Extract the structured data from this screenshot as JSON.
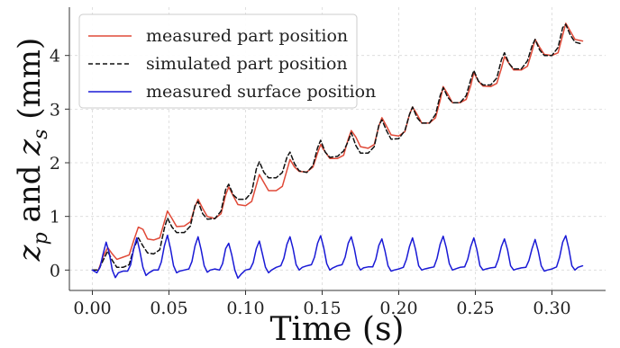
{
  "chart_data": {
    "type": "line",
    "xlabel": "Time (s)",
    "ylabel": "z_p and z_s (mm)",
    "ylabel_parts": {
      "z1": "z",
      "sub1": "p",
      "mid": " and ",
      "z2": "z",
      "sub2": "s",
      "unit": " (mm)"
    },
    "xlim": [
      -0.015,
      0.335
    ],
    "ylim": [
      -0.38,
      4.9
    ],
    "xticks": [
      0.0,
      0.05,
      0.1,
      0.15,
      0.2,
      0.25,
      0.3
    ],
    "xtick_labels": [
      "0.00",
      "0.05",
      "0.10",
      "0.15",
      "0.20",
      "0.25",
      "0.30"
    ],
    "yticks": [
      0,
      1,
      2,
      3,
      4
    ],
    "ytick_labels": [
      "0",
      "1",
      "2",
      "3",
      "4"
    ],
    "grid": true,
    "legend_position": "top-left",
    "series": [
      {
        "name": "measured part position",
        "color": "#e04a38",
        "style": "solid",
        "x": [
          0.0,
          0.004,
          0.007,
          0.01,
          0.013,
          0.016,
          0.02,
          0.024,
          0.027,
          0.03,
          0.033,
          0.036,
          0.04,
          0.044,
          0.047,
          0.049,
          0.052,
          0.055,
          0.06,
          0.064,
          0.067,
          0.069,
          0.072,
          0.075,
          0.08,
          0.084,
          0.087,
          0.089,
          0.092,
          0.095,
          0.1,
          0.104,
          0.107,
          0.109,
          0.112,
          0.115,
          0.12,
          0.124,
          0.127,
          0.129,
          0.132,
          0.135,
          0.14,
          0.144,
          0.147,
          0.149,
          0.152,
          0.155,
          0.16,
          0.164,
          0.167,
          0.169,
          0.172,
          0.175,
          0.18,
          0.184,
          0.187,
          0.189,
          0.192,
          0.195,
          0.2,
          0.204,
          0.207,
          0.209,
          0.212,
          0.215,
          0.22,
          0.224,
          0.227,
          0.229,
          0.232,
          0.235,
          0.24,
          0.244,
          0.247,
          0.249,
          0.252,
          0.255,
          0.26,
          0.264,
          0.267,
          0.269,
          0.272,
          0.275,
          0.28,
          0.284,
          0.287,
          0.289,
          0.292,
          0.295,
          0.3,
          0.304,
          0.307,
          0.309,
          0.312,
          0.315,
          0.32
        ],
        "y": [
          0.0,
          0.0,
          0.25,
          0.42,
          0.3,
          0.2,
          0.24,
          0.28,
          0.55,
          0.8,
          0.76,
          0.58,
          0.56,
          0.6,
          0.9,
          1.1,
          0.96,
          0.81,
          0.82,
          0.9,
          1.18,
          1.32,
          1.15,
          1.0,
          0.96,
          1.05,
          1.4,
          1.55,
          1.38,
          1.22,
          1.2,
          1.28,
          1.58,
          1.78,
          1.63,
          1.48,
          1.48,
          1.56,
          1.86,
          2.06,
          1.92,
          1.84,
          1.83,
          1.92,
          2.18,
          2.34,
          2.2,
          2.08,
          2.08,
          2.14,
          2.44,
          2.6,
          2.48,
          2.3,
          2.27,
          2.34,
          2.68,
          2.84,
          2.68,
          2.52,
          2.5,
          2.58,
          2.9,
          3.04,
          2.9,
          2.74,
          2.74,
          2.84,
          3.16,
          3.42,
          3.28,
          3.12,
          3.12,
          3.18,
          3.44,
          3.68,
          3.52,
          3.43,
          3.42,
          3.48,
          3.76,
          3.98,
          3.85,
          3.73,
          3.73,
          3.8,
          4.08,
          4.3,
          4.15,
          4.02,
          4.0,
          4.05,
          4.38,
          4.6,
          4.45,
          4.3,
          4.27
        ]
      },
      {
        "name": "simulated part position",
        "color": "#111111",
        "style": "dashed",
        "x": [
          0.0,
          0.004,
          0.007,
          0.01,
          0.013,
          0.016,
          0.02,
          0.024,
          0.027,
          0.03,
          0.033,
          0.036,
          0.04,
          0.044,
          0.047,
          0.049,
          0.052,
          0.055,
          0.06,
          0.064,
          0.067,
          0.069,
          0.072,
          0.075,
          0.08,
          0.084,
          0.087,
          0.089,
          0.092,
          0.095,
          0.1,
          0.104,
          0.107,
          0.109,
          0.112,
          0.115,
          0.12,
          0.124,
          0.127,
          0.129,
          0.132,
          0.135,
          0.14,
          0.144,
          0.147,
          0.149,
          0.152,
          0.155,
          0.16,
          0.164,
          0.167,
          0.169,
          0.172,
          0.175,
          0.18,
          0.184,
          0.187,
          0.189,
          0.192,
          0.195,
          0.2,
          0.204,
          0.207,
          0.209,
          0.212,
          0.215,
          0.22,
          0.224,
          0.227,
          0.229,
          0.232,
          0.235,
          0.24,
          0.244,
          0.247,
          0.249,
          0.252,
          0.255,
          0.26,
          0.264,
          0.267,
          0.269,
          0.272,
          0.275,
          0.28,
          0.284,
          0.287,
          0.289,
          0.292,
          0.295,
          0.3,
          0.304,
          0.307,
          0.309,
          0.312,
          0.315,
          0.32
        ],
        "y": [
          0.0,
          0.0,
          0.18,
          0.35,
          0.18,
          0.05,
          0.05,
          0.1,
          0.4,
          0.6,
          0.45,
          0.32,
          0.3,
          0.38,
          0.78,
          0.97,
          0.8,
          0.7,
          0.7,
          0.82,
          1.2,
          1.28,
          1.05,
          0.95,
          0.96,
          1.1,
          1.5,
          1.6,
          1.4,
          1.32,
          1.32,
          1.45,
          1.88,
          2.02,
          1.82,
          1.72,
          1.72,
          1.82,
          2.1,
          2.2,
          1.98,
          1.85,
          1.82,
          1.95,
          2.28,
          2.42,
          2.2,
          2.1,
          2.12,
          2.22,
          2.4,
          2.56,
          2.32,
          2.18,
          2.18,
          2.3,
          2.7,
          2.8,
          2.6,
          2.44,
          2.45,
          2.6,
          2.9,
          3.04,
          2.84,
          2.74,
          2.74,
          2.9,
          3.25,
          3.4,
          3.22,
          3.12,
          3.12,
          3.25,
          3.55,
          3.72,
          3.52,
          3.45,
          3.45,
          3.58,
          3.92,
          4.05,
          3.85,
          3.75,
          3.75,
          3.9,
          4.18,
          4.3,
          4.1,
          4.0,
          4.0,
          4.15,
          4.52,
          4.58,
          4.38,
          4.25,
          4.21
        ]
      },
      {
        "name": "measured surface position",
        "color": "#1a1ad6",
        "style": "solid",
        "x": [
          0.0,
          0.003,
          0.005,
          0.007,
          0.009,
          0.011,
          0.013,
          0.015,
          0.017,
          0.02,
          0.023,
          0.025,
          0.027,
          0.029,
          0.031,
          0.033,
          0.035,
          0.037,
          0.04,
          0.043,
          0.045,
          0.047,
          0.049,
          0.051,
          0.053,
          0.055,
          0.057,
          0.06,
          0.063,
          0.065,
          0.067,
          0.069,
          0.071,
          0.073,
          0.075,
          0.077,
          0.08,
          0.083,
          0.085,
          0.087,
          0.089,
          0.091,
          0.093,
          0.095,
          0.097,
          0.1,
          0.103,
          0.105,
          0.107,
          0.109,
          0.111,
          0.113,
          0.115,
          0.117,
          0.12,
          0.123,
          0.125,
          0.127,
          0.129,
          0.131,
          0.133,
          0.135,
          0.137,
          0.14,
          0.143,
          0.145,
          0.147,
          0.149,
          0.151,
          0.153,
          0.155,
          0.157,
          0.16,
          0.163,
          0.165,
          0.167,
          0.169,
          0.171,
          0.173,
          0.175,
          0.177,
          0.18,
          0.183,
          0.185,
          0.187,
          0.189,
          0.191,
          0.193,
          0.195,
          0.197,
          0.2,
          0.203,
          0.205,
          0.207,
          0.209,
          0.211,
          0.213,
          0.215,
          0.217,
          0.22,
          0.223,
          0.225,
          0.227,
          0.229,
          0.231,
          0.233,
          0.235,
          0.237,
          0.24,
          0.243,
          0.245,
          0.247,
          0.249,
          0.251,
          0.253,
          0.255,
          0.257,
          0.26,
          0.263,
          0.265,
          0.267,
          0.269,
          0.271,
          0.273,
          0.275,
          0.277,
          0.28,
          0.283,
          0.285,
          0.287,
          0.289,
          0.291,
          0.293,
          0.295,
          0.297,
          0.3,
          0.303,
          0.305,
          0.307,
          0.309,
          0.311,
          0.313,
          0.315,
          0.317,
          0.32
        ],
        "y": [
          0.0,
          -0.05,
          0.05,
          0.3,
          0.52,
          0.32,
          0.0,
          -0.14,
          -0.05,
          -0.02,
          -0.02,
          0.1,
          0.4,
          0.6,
          0.35,
          0.05,
          -0.1,
          -0.05,
          0.0,
          0.0,
          0.15,
          0.45,
          0.65,
          0.4,
          0.08,
          -0.05,
          -0.02,
          0.0,
          0.02,
          0.16,
          0.45,
          0.62,
          0.38,
          0.08,
          -0.04,
          0.0,
          0.02,
          0.0,
          0.12,
          0.4,
          0.5,
          0.28,
          0.0,
          -0.15,
          -0.08,
          0.0,
          0.02,
          0.14,
          0.4,
          0.54,
          0.3,
          0.05,
          -0.05,
          0.0,
          0.05,
          0.08,
          0.22,
          0.48,
          0.62,
          0.4,
          0.1,
          0.0,
          0.05,
          0.08,
          0.1,
          0.24,
          0.5,
          0.64,
          0.42,
          0.12,
          0.0,
          0.04,
          0.08,
          0.1,
          0.24,
          0.5,
          0.62,
          0.4,
          0.1,
          0.0,
          0.04,
          0.06,
          0.06,
          0.2,
          0.46,
          0.58,
          0.36,
          0.08,
          -0.02,
          0.0,
          0.02,
          0.05,
          0.2,
          0.44,
          0.6,
          0.38,
          0.08,
          0.0,
          0.02,
          0.04,
          0.06,
          0.22,
          0.48,
          0.63,
          0.42,
          0.12,
          0.0,
          0.02,
          0.05,
          0.06,
          0.2,
          0.44,
          0.6,
          0.38,
          0.08,
          0.0,
          0.02,
          0.04,
          0.05,
          0.2,
          0.44,
          0.58,
          0.38,
          0.08,
          0.0,
          0.02,
          0.04,
          0.05,
          0.18,
          0.4,
          0.57,
          0.36,
          0.08,
          -0.02,
          0.0,
          0.02,
          0.06,
          0.24,
          0.52,
          0.64,
          0.4,
          0.08,
          0.0,
          0.05,
          0.08
        ]
      }
    ]
  }
}
